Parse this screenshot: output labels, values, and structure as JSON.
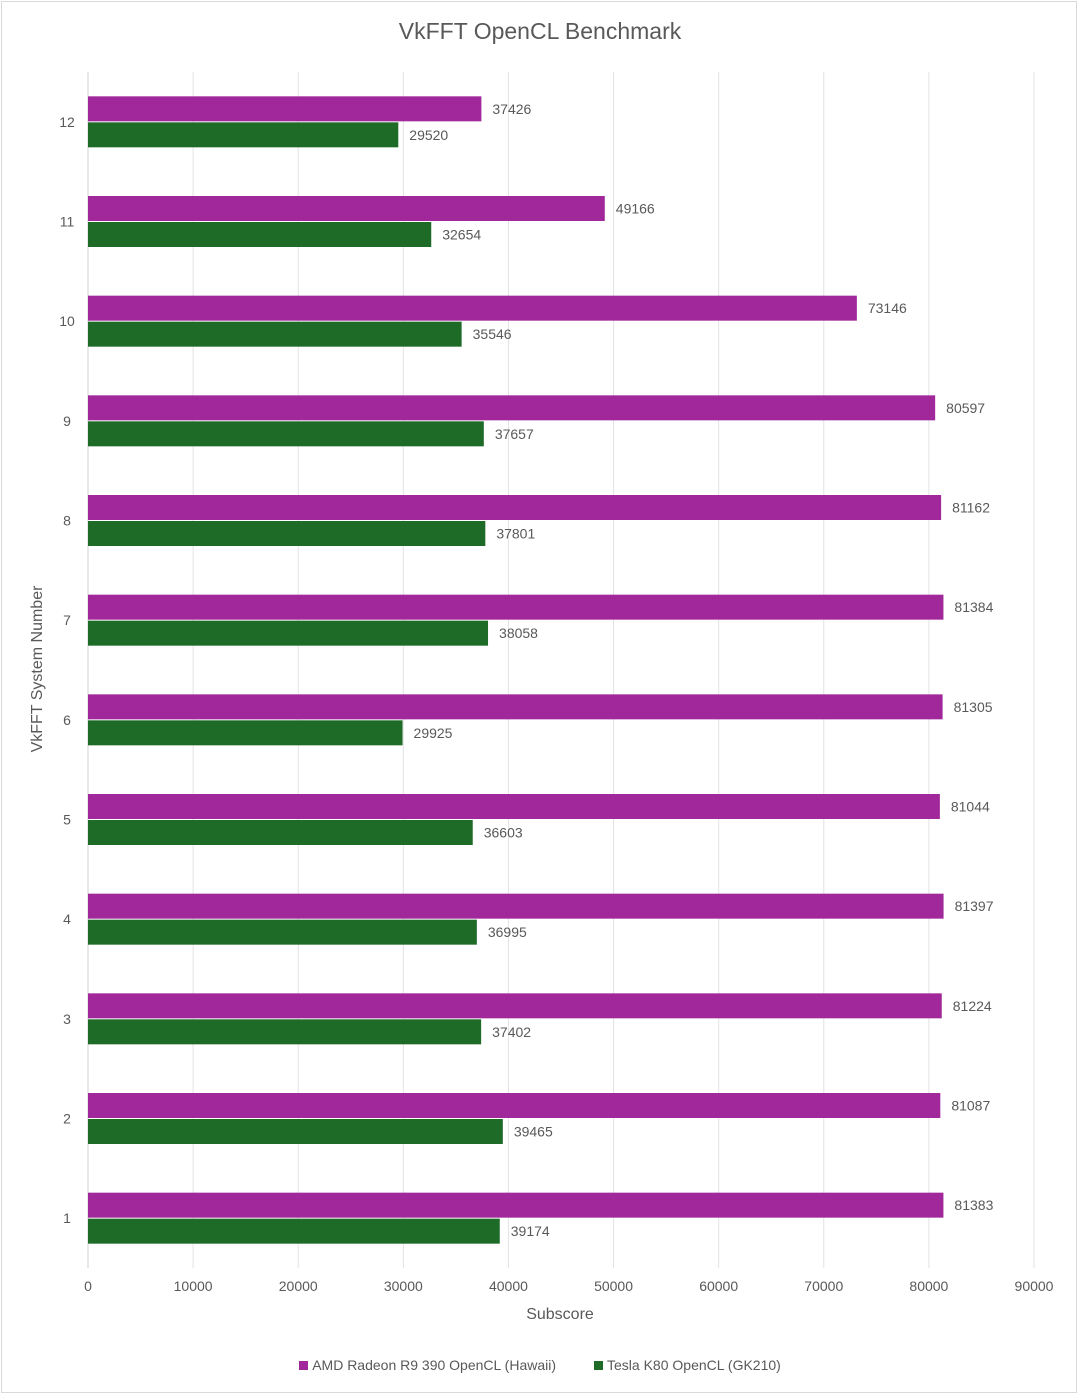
{
  "chart_data": {
    "type": "bar",
    "orientation": "horizontal",
    "title": "VkFFT OpenCL Benchmark",
    "xlabel": "Subscore",
    "ylabel": "VkFFT System Number",
    "categories": [
      "1",
      "2",
      "3",
      "4",
      "5",
      "6",
      "7",
      "8",
      "9",
      "10",
      "11",
      "12"
    ],
    "series": [
      {
        "name": "AMD Radeon R9 390 OpenCL (Hawaii)",
        "color": "#a0289a",
        "values": [
          81383,
          81087,
          81224,
          81397,
          81044,
          81305,
          81384,
          81162,
          80597,
          73146,
          49166,
          37426
        ]
      },
      {
        "name": "Tesla K80 OpenCL (GK210)",
        "color": "#1e6b27",
        "values": [
          39174,
          39465,
          37402,
          36995,
          36603,
          29925,
          38058,
          37801,
          37657,
          35546,
          32654,
          29520
        ]
      }
    ],
    "xlim": [
      0,
      90000
    ],
    "xticks": [
      0,
      10000,
      20000,
      30000,
      40000,
      50000,
      60000,
      70000,
      80000,
      90000
    ],
    "grid": true,
    "legend_position": "bottom"
  }
}
